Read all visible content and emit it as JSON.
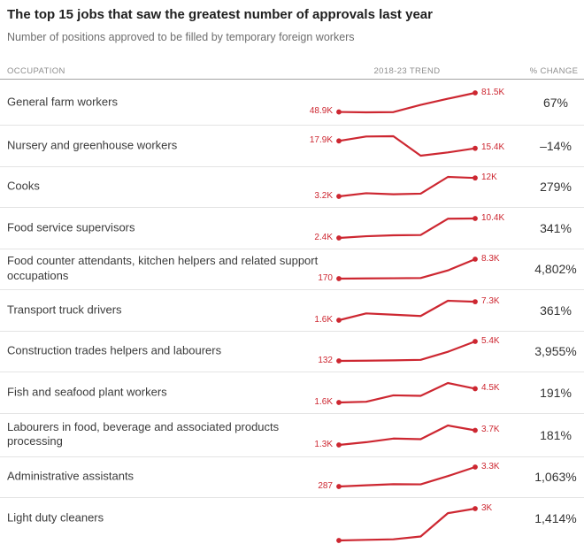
{
  "page": {
    "title": "The top 15 jobs that saw the greatest number of approvals last year",
    "subtitle": "Number of positions approved to be filled by temporary foreign workers"
  },
  "columns": {
    "occupation": "OCCUPATION",
    "trend": "2018-23 TREND",
    "change": "% CHANGE"
  },
  "colors": {
    "accent": "#cd2731",
    "title_text": "#1f1f1f",
    "subtitle_text": "#6e6e6e",
    "column_header_text": "#8e8e8e",
    "row_label_text": "#3b3b3b",
    "header_rule": "#a3a3a3",
    "row_separator": "#e4e4e4"
  },
  "chart_data": {
    "type": "line",
    "subtype": "sparkline-table",
    "x": [
      2018,
      2019,
      2020,
      2021,
      2022,
      2023
    ],
    "values_unit": "thousands of approved positions",
    "legend": "none",
    "grid": false,
    "rows": [
      {
        "occupation": "General farm workers",
        "start_label": "48.9K",
        "end_label": "81.5K",
        "change": "67%",
        "values": [
          48.9,
          48.2,
          48.6,
          61.0,
          71.5,
          81.5
        ],
        "clipped": false
      },
      {
        "occupation": "Nursery and greenhouse workers",
        "start_label": "17.9K",
        "end_label": "15.4K",
        "change": "–14%",
        "values": [
          17.9,
          19.4,
          19.5,
          12.9,
          14.0,
          15.4
        ],
        "clipped": false
      },
      {
        "occupation": "Cooks",
        "start_label": "3.2K",
        "end_label": "12K",
        "change": "279%",
        "values": [
          3.2,
          4.7,
          4.2,
          4.5,
          12.5,
          12.0
        ],
        "clipped": false
      },
      {
        "occupation": "Food service supervisors",
        "start_label": "2.4K",
        "end_label": "10.4K",
        "change": "341%",
        "values": [
          2.4,
          3.1,
          3.5,
          3.6,
          10.3,
          10.4
        ],
        "clipped": false
      },
      {
        "occupation": "Food counter attendants, kitchen helpers and related support occupations",
        "start_label": "170",
        "end_label": "8.3K",
        "change": "4,802%",
        "values": [
          0.17,
          0.26,
          0.33,
          0.42,
          3.6,
          8.3
        ],
        "clipped": false
      },
      {
        "occupation": "Transport truck drivers",
        "start_label": "1.6K",
        "end_label": "7.3K",
        "change": "361%",
        "values": [
          1.6,
          3.7,
          3.3,
          2.9,
          7.6,
          7.3
        ],
        "clipped": false
      },
      {
        "occupation": "Construction trades helpers and labourers",
        "start_label": "132",
        "end_label": "5.4K",
        "change": "3,955%",
        "values": [
          0.132,
          0.19,
          0.28,
          0.42,
          2.6,
          5.4
        ],
        "clipped": false
      },
      {
        "occupation": "Fish and seafood plant workers",
        "start_label": "1.6K",
        "end_label": "4.5K",
        "change": "191%",
        "values": [
          1.6,
          1.75,
          3.1,
          3.0,
          5.7,
          4.5
        ],
        "clipped": false
      },
      {
        "occupation": "Labourers in food, beverage and associated products processing",
        "start_label": "1.3K",
        "end_label": "3.7K",
        "change": "181%",
        "values": [
          1.3,
          1.75,
          2.35,
          2.25,
          4.5,
          3.7
        ],
        "clipped": false
      },
      {
        "occupation": "Administrative assistants",
        "start_label": "287",
        "end_label": "3.3K",
        "change": "1,063%",
        "values": [
          0.287,
          0.48,
          0.65,
          0.62,
          1.9,
          3.3
        ],
        "clipped": false
      },
      {
        "occupation": "Light duty cleaners",
        "start_label": "",
        "end_label": "3K",
        "change": "1,414%",
        "values": [
          0.198,
          0.25,
          0.3,
          0.55,
          2.6,
          3.0
        ],
        "clipped": true
      }
    ]
  }
}
